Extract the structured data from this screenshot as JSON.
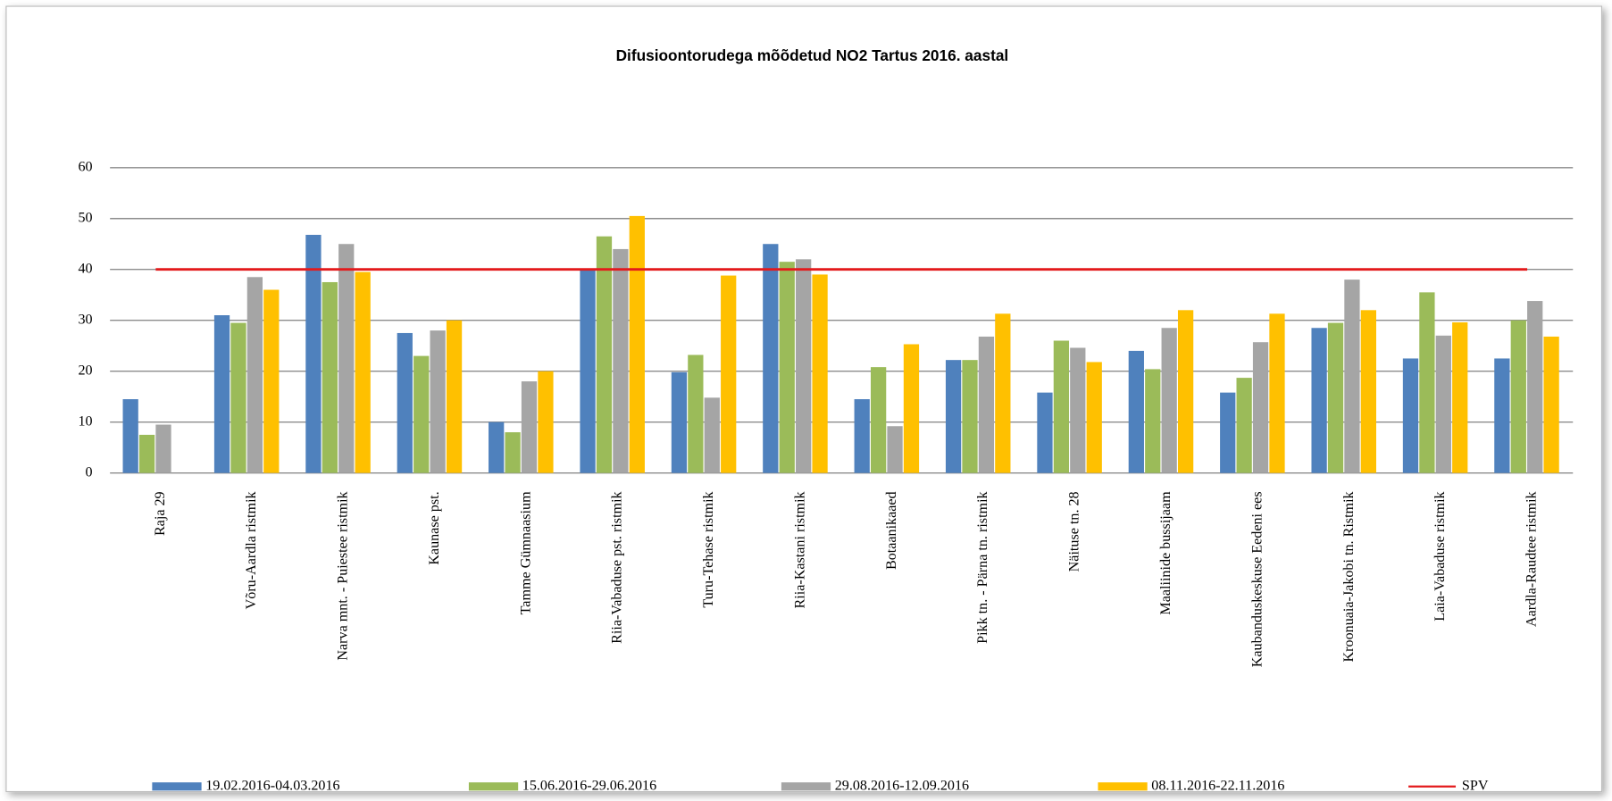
{
  "chart_data": {
    "type": "bar",
    "title": "Difusioontorudega mõõdetud NO2 Tartus 2016. aastal",
    "categories": [
      "Raja 29",
      "Võru-Aardla ristmik",
      "Narva mnt. - Puiestee ristmik",
      "Kaunase pst.",
      "Tamme Gümnaasium",
      "Riia-Vabaduse pst. ristmik",
      "Turu-Tehase ristmik",
      "Riia-Kastani ristmik",
      "Botaanikaaed",
      "Pikk tn. - Pärna tn. ristmik",
      "Näituse tn. 28",
      "Maaliinide bussijaam",
      "Kaubanduskeskuse Eedeni ees",
      "Kroonuaia-Jakobi tn. Ristmik",
      "Laia-Vabaduse ristmik",
      "Aardla-Raudtee ristmik"
    ],
    "series": [
      {
        "name": "19.02.2016-04.03.2016",
        "color": "#4f81bd",
        "values": [
          14.5,
          31,
          46.8,
          27.5,
          10,
          40,
          19.8,
          45,
          14.5,
          22.2,
          15.8,
          24,
          15.8,
          28.5,
          22.5,
          22.5
        ]
      },
      {
        "name": "15.06.2016-29.06.2016",
        "color": "#9bbb59",
        "values": [
          7.5,
          29.5,
          37.5,
          23,
          8,
          46.5,
          23.2,
          41.5,
          20.8,
          22.2,
          26,
          20.4,
          18.7,
          29.5,
          35.5,
          30
        ]
      },
      {
        "name": "29.08.2016-12.09.2016",
        "color": "#a5a5a5",
        "values": [
          9.5,
          38.5,
          45,
          28,
          18,
          44,
          14.8,
          42,
          9.2,
          26.8,
          24.6,
          28.5,
          25.7,
          38,
          27,
          33.8
        ]
      },
      {
        "name": "08.11.2016-22.11.2016",
        "color": "#ffc000",
        "values": [
          null,
          36,
          39.5,
          30,
          20,
          50.5,
          38.8,
          39,
          25.3,
          31.3,
          21.8,
          32,
          31.3,
          32,
          29.6,
          26.8
        ]
      },
      {
        "name": "SPV",
        "color": "#e31a1c",
        "type": "line",
        "values": [
          40,
          40,
          40,
          40,
          40,
          40,
          40,
          40,
          40,
          40,
          40,
          40,
          40,
          40,
          40,
          40
        ]
      }
    ],
    "ylim": [
      0,
      60
    ],
    "yticks": [
      0,
      10,
      20,
      30,
      40,
      50,
      60
    ],
    "grid": true,
    "legend": "bottom"
  }
}
